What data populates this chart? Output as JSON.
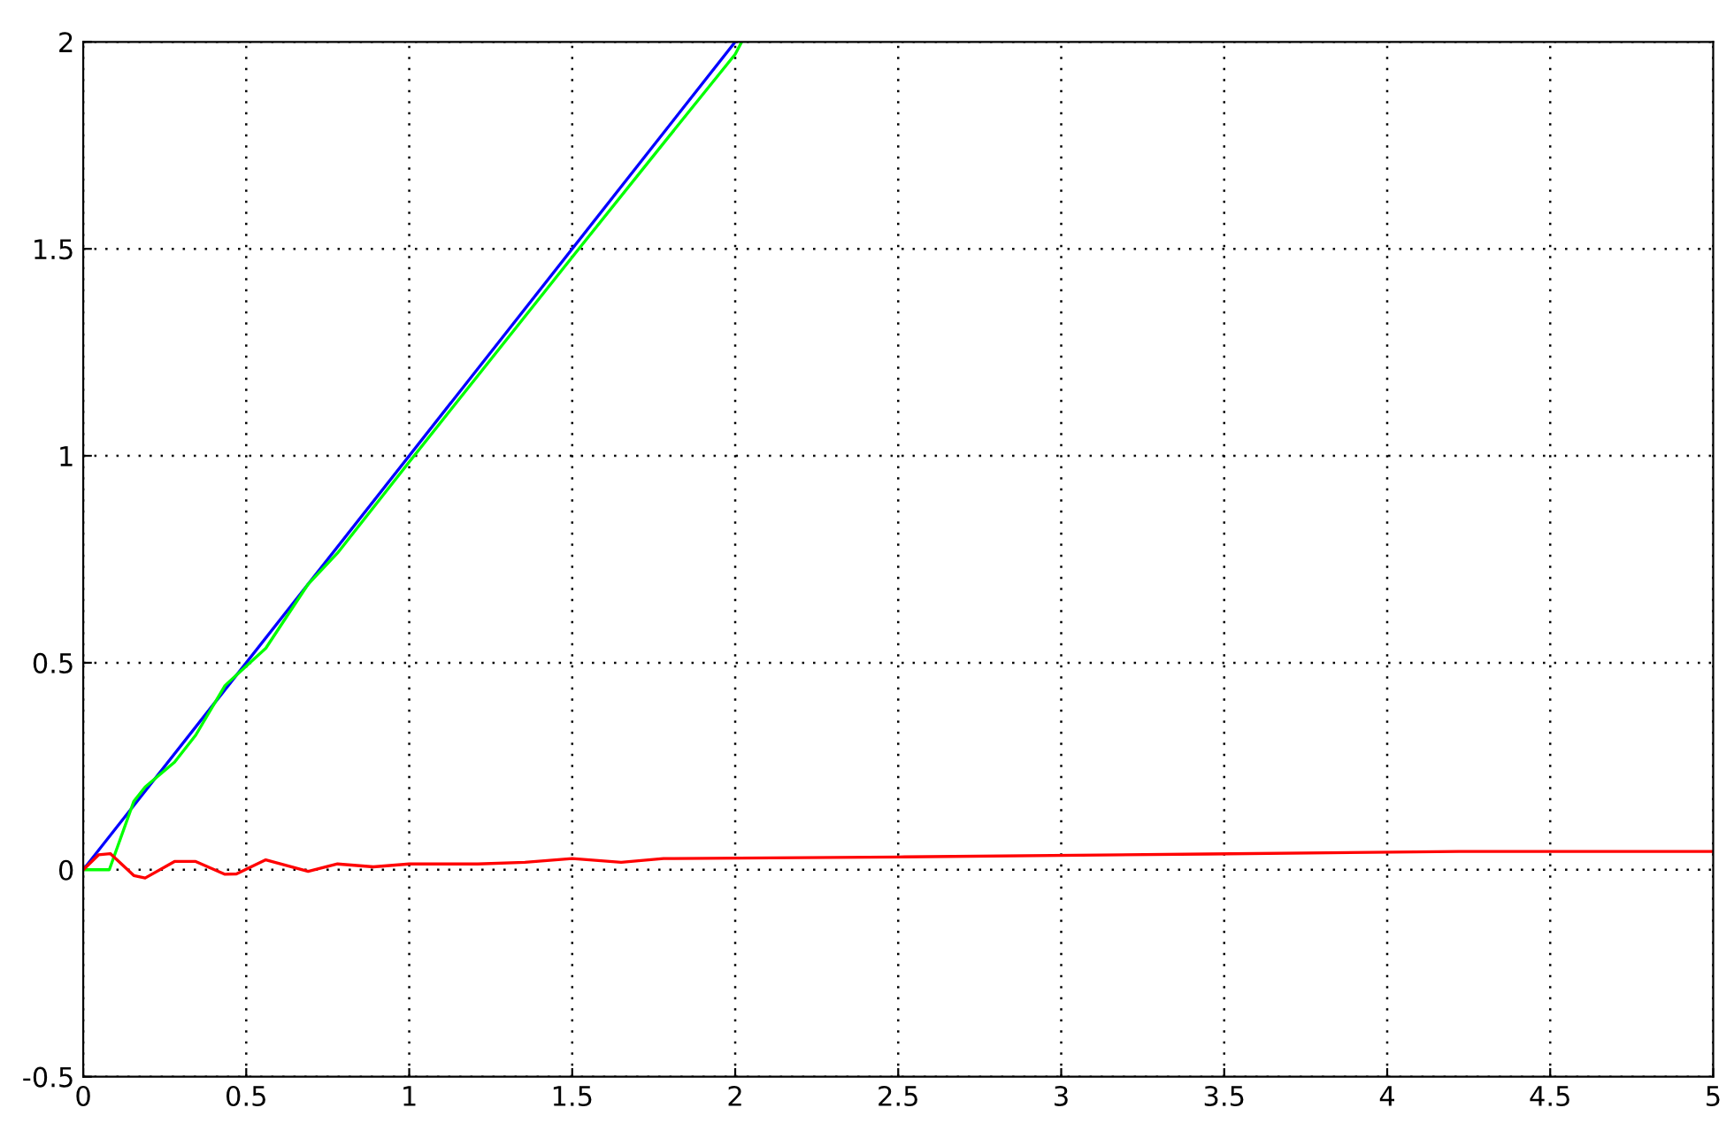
{
  "chart_data": {
    "type": "line",
    "xlim": [
      0,
      5
    ],
    "ylim": [
      -0.5,
      2
    ],
    "xticks": [
      0,
      0.5,
      1,
      1.5,
      2,
      2.5,
      3,
      3.5,
      4,
      4.5,
      5
    ],
    "yticks": [
      -0.5,
      0,
      0.5,
      1,
      1.5,
      2
    ],
    "grid": true,
    "line_style": "solid",
    "marker": "none",
    "series": [
      {
        "color": "#0000ff",
        "x": [
          0,
          2
        ],
        "values": [
          0,
          2
        ]
      },
      {
        "color": "#00ff00",
        "x": [
          0,
          0.08,
          0.155,
          0.19,
          0.28,
          0.345,
          0.435,
          0.56,
          0.69,
          0.78,
          1.0,
          1.5,
          1.78,
          2.0,
          2.02
        ],
        "values": [
          0,
          0,
          0.165,
          0.2,
          0.26,
          0.325,
          0.445,
          0.535,
          0.69,
          0.765,
          0.985,
          1.48,
          1.755,
          1.97,
          2.0
        ]
      },
      {
        "color": "#ff0000",
        "x": [
          0,
          0.047,
          0.083,
          0.155,
          0.19,
          0.28,
          0.345,
          0.435,
          0.47,
          0.56,
          0.69,
          0.78,
          0.89,
          1.0,
          1.21,
          1.355,
          1.5,
          1.65,
          1.78,
          2.52,
          3.45,
          4.22,
          5.0
        ],
        "values": [
          0,
          0.036,
          0.039,
          -0.014,
          -0.02,
          0.02,
          0.02,
          -0.011,
          -0.01,
          0.024,
          -0.004,
          0.014,
          0.007,
          0.014,
          0.014,
          0.018,
          0.027,
          0.018,
          0.027,
          0.031,
          0.038,
          0.044,
          0.044
        ]
      }
    ]
  }
}
